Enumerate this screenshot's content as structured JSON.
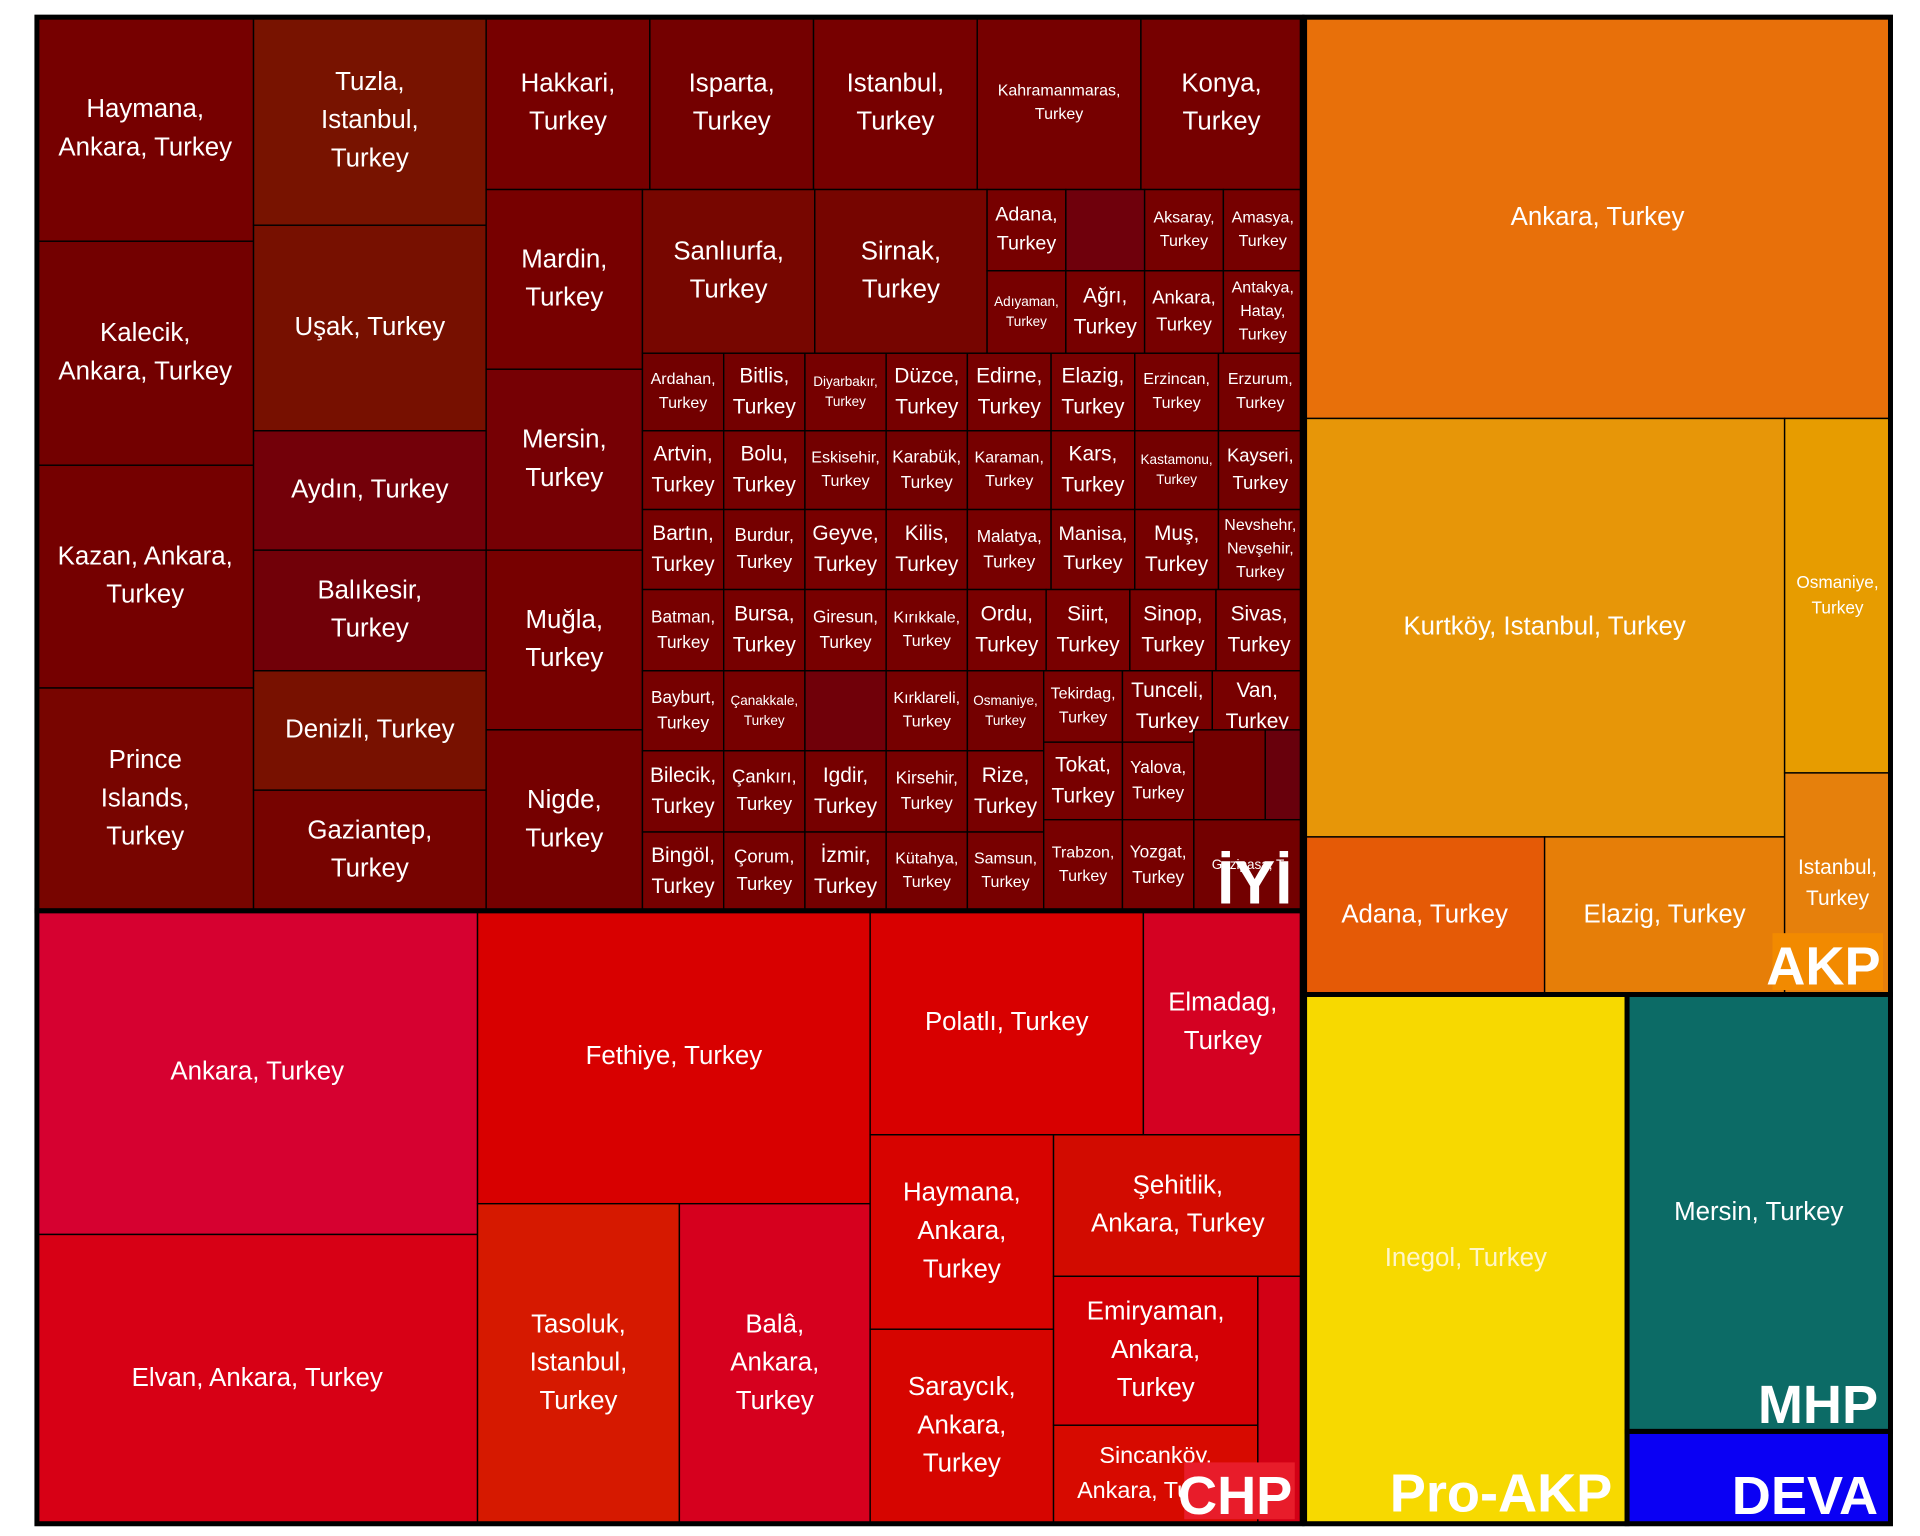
{
  "chart_data": {
    "type": "treemap",
    "title": "",
    "groups": [
      {
        "name": "İYİ",
        "color": "#7a0000",
        "tiles": [
          "Haymana, Ankara, Turkey",
          "Kalecik, Ankara, Turkey",
          "Kazan, Ankara, Turkey",
          "Prince Islands, Turkey",
          "Tuzla, Istanbul, Turkey",
          "Uşak, Turkey",
          "Aydın, Turkey",
          "Balıkesir, Turkey",
          "Denizli, Turkey",
          "Gaziantep, Turkey",
          "Hakkari, Turkey",
          "Isparta, Turkey",
          "Istanbul, Turkey",
          "Kahramanmaras, Turkey",
          "Konya, Turkey",
          "Mardin, Turkey",
          "Mersin, Turkey",
          "Muğla, Turkey",
          "Nigde, Turkey",
          "Sanlıurfa, Turkey",
          "Sirnak, Turkey",
          "Adana, Turkey",
          "",
          "Aksaray, Turkey",
          "Amasya, Turkey",
          "Adıyaman, Turkey",
          "Ağrı, Turkey",
          "Ankara, Turkey",
          "Antakya, Hatay, Turkey",
          "Ardahan, Turkey",
          "Bitlis, Turkey",
          "Diyarbakır, Turkey",
          "Düzce, Turkey",
          "Edirne, Turkey",
          "Elazig, Turkey",
          "Erzincan, Turkey",
          "Erzurum, Turkey",
          "Artvin, Turkey",
          "Bolu, Turkey",
          "Eskisehir, Turkey",
          "Karabük, Turkey",
          "Karaman, Turkey",
          "Kars, Turkey",
          "Kastamonu, Turkey",
          "Kayseri, Turkey",
          "Bartın, Turkey",
          "Burdur, Turkey",
          "Geyve, Turkey",
          "Kilis, Turkey",
          "Malatya, Turkey",
          "Manisa, Turkey",
          "Muş, Turkey",
          "Nevshehr, Nevşehir, Turkey",
          "Batman, Turkey",
          "Bursa, Turkey",
          "Giresun, Turkey",
          "Kırıkkale, Turkey",
          "Ordu, Turkey",
          "Siirt, Turkey",
          "Sinop, Turkey",
          "Sivas, Turkey",
          "Bayburt, Turkey",
          "Çanakkale, Turkey",
          "",
          "Kırklareli, Turkey",
          "Osmaniye, Turkey",
          "Tekirdag, Turkey",
          "Tunceli, Turkey",
          "Van, Turkey",
          "Bilecik, Turkey",
          "Çankırı, Turkey",
          "Igdir, Turkey",
          "Kirsehir, Turkey",
          "Rize, Turkey",
          "Tokat, Turkey",
          "Yalova, Turkey",
          "",
          "",
          "Bingöl, Turkey",
          "Çorum, Turkey",
          "İzmir, Turkey",
          "Kütahya, Turkey",
          "Samsun, Turkey",
          "Trabzon, Turkey",
          "Yozgat, Turkey",
          "Gazipasa, T"
        ]
      },
      {
        "name": "CHP",
        "color": "#d0021b",
        "tiles": [
          "Ankara, Turkey",
          "Elvan, Ankara, Turkey",
          "Fethiye, Turkey",
          "Tasoluk, Istanbul, Turkey",
          "Balâ, Ankara, Turkey",
          "Polatlı, Turkey",
          "Elmadag, Turkey",
          "Haymana, Ankara, Turkey",
          "Şehitlik, Ankara, Turkey",
          "Saraycık, Ankara, Turkey",
          "Emiryaman, Ankara, Turkey",
          "Sincanköy, Ankara, Turkey",
          ""
        ]
      },
      {
        "name": "AKP",
        "color": "#e8780a",
        "tiles": [
          "Ankara, Turkey",
          "Kurtköy, Istanbul, Turkey",
          "Osmaniye, Turkey",
          "Adana, Turkey",
          "Elazig, Turkey",
          "Istanbul, Turkey"
        ]
      },
      {
        "name": "Pro-AKP",
        "color": "#f7d900",
        "tiles": [
          "Inegol, Turkey"
        ]
      },
      {
        "name": "MHP",
        "color": "#0d6b66",
        "tiles": [
          "Mersin, Turkey"
        ]
      },
      {
        "name": "DEVA",
        "color": "#0000ff",
        "tiles": [
          ""
        ]
      }
    ]
  }
}
